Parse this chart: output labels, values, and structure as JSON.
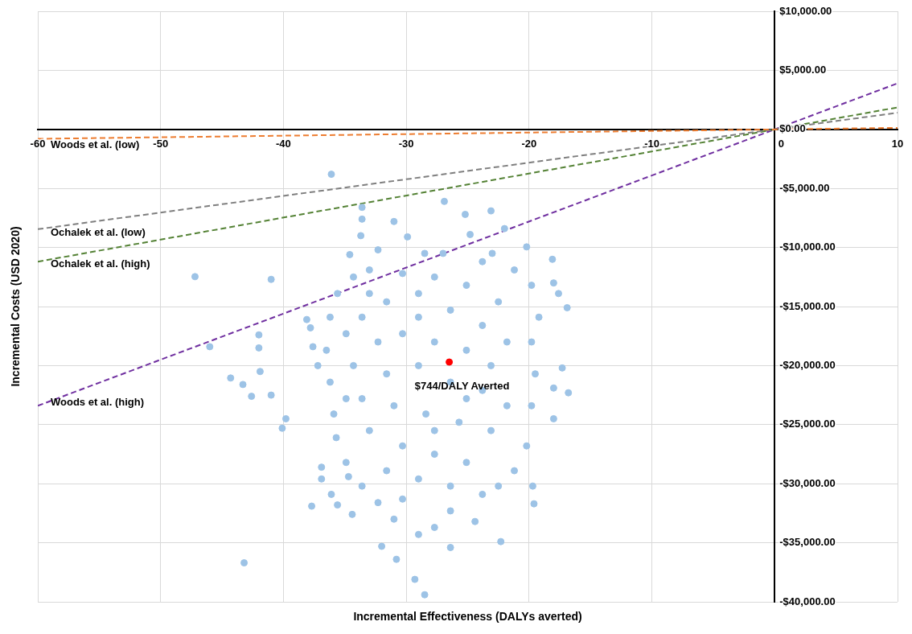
{
  "chart_data": {
    "type": "scatter",
    "xlabel": "Incremental Effectiveness (DALYs averted)",
    "ylabel": "Incremental Costs (USD 2020)",
    "xlim": [
      -60,
      10
    ],
    "xticks": [
      -60,
      -50,
      -40,
      -30,
      -20,
      -10,
      0,
      10
    ],
    "ylim": [
      -40000,
      10000
    ],
    "yticks": [
      {
        "value": 10000,
        "label": "$10,000.00"
      },
      {
        "value": 5000,
        "label": "$5,000.00"
      },
      {
        "value": 0,
        "label": "$0.00"
      },
      {
        "value": -5000,
        "label": "-$5,000.00"
      },
      {
        "value": -10000,
        "label": "-$10,000.00"
      },
      {
        "value": -15000,
        "label": "-$15,000.00"
      },
      {
        "value": -20000,
        "label": "-$20,000.00"
      },
      {
        "value": -25000,
        "label": "-$25,000.00"
      },
      {
        "value": -30000,
        "label": "-$30,000.00"
      },
      {
        "value": -35000,
        "label": "-$35,000.00"
      },
      {
        "value": -40000,
        "label": "-$40,000.00"
      }
    ],
    "grid": true,
    "legend": false,
    "marker": "circle",
    "series": [
      {
        "color": "#9dc3e6",
        "x": [
          -47.2,
          -46.0,
          -44.3,
          -43.3,
          -43.2,
          -42.6,
          -42.0,
          -42.0,
          -41.9,
          -41.0,
          -41.0,
          -40.1,
          -39.8,
          -36.1,
          -37.7,
          -35.6,
          -29.3,
          -28.5,
          -30.8,
          -32.0,
          -26.9,
          -25.2,
          -23.1,
          -22.0,
          -31.0,
          -33.6,
          -33.6,
          -20.2,
          -18.0,
          -17.6,
          -18.1,
          -16.9,
          -17.3,
          -16.8,
          -18.0,
          -18.0,
          -19.7,
          -19.6,
          -22.3,
          -24.4,
          -26.4,
          -38.1,
          -37.8,
          -37.6,
          -37.2,
          -36.9,
          -36.9,
          -35.7,
          -36.1,
          -34.4,
          -34.7,
          -34.6,
          -33.7,
          -32.3,
          -29.9,
          -28.5,
          -27.0,
          -24.8,
          -23.8,
          -23.0,
          -21.2,
          -19.8,
          -19.2,
          -19.8,
          -19.5,
          -19.8,
          -20.2,
          -21.2,
          -22.5,
          -23.8,
          -26.4,
          -27.7,
          -29.0,
          -31.0,
          -32.3,
          -33.6,
          -34.9,
          -35.9,
          -36.2,
          -36.5,
          -36.2,
          -35.6,
          -34.3,
          -33.0,
          -30.3,
          -27.7,
          -25.1,
          -22.5,
          -33.6,
          -31.6,
          -29.0,
          -26.4,
          -23.8,
          -21.8,
          -32.3,
          -30.3,
          -27.7,
          -25.1,
          -23.1,
          -34.3,
          -31.6,
          -29.0,
          -26.4,
          -23.8,
          -21.8,
          -33.6,
          -31.0,
          -28.4,
          -25.7,
          -23.1,
          -33.0,
          -30.3,
          -27.7,
          -25.1,
          -31.6,
          -29.0,
          -26.4,
          -30.3,
          -27.7,
          -25.1,
          -29.0,
          -33.0,
          -34.9,
          -34.9
        ],
        "values": [
          -12470,
          -18400,
          -21050,
          -21600,
          -36700,
          -22600,
          -17400,
          -18500,
          -20500,
          -12700,
          -22500,
          -25300,
          -24500,
          -3800,
          -31900,
          -31800,
          -38100,
          -39400,
          -36400,
          -35300,
          -6100,
          -7200,
          -6900,
          -8400,
          -7800,
          -7600,
          -6600,
          -9950,
          -13000,
          -13900,
          -11000,
          -15100,
          -20200,
          -22300,
          -21900,
          -24500,
          -30200,
          -31700,
          -34900,
          -33200,
          -35400,
          -16100,
          -16800,
          -18400,
          -20000,
          -28600,
          -29600,
          -26100,
          -30900,
          -32600,
          -29400,
          -10600,
          -9000,
          -10200,
          -9100,
          -10500,
          -10500,
          -8900,
          -11200,
          -10500,
          -11900,
          -13200,
          -15900,
          -18000,
          -20700,
          -23400,
          -26800,
          -28900,
          -30200,
          -30900,
          -32300,
          -33700,
          -34300,
          -33000,
          -31600,
          -30200,
          -28200,
          -24100,
          -21400,
          -18700,
          -15900,
          -13900,
          -12500,
          -11900,
          -12200,
          -12500,
          -13200,
          -14600,
          -15900,
          -14600,
          -15900,
          -15300,
          -16600,
          -18000,
          -18000,
          -17300,
          -18000,
          -18700,
          -20000,
          -20000,
          -20700,
          -20000,
          -21400,
          -22100,
          -23400,
          -22800,
          -23400,
          -24100,
          -24800,
          -25500,
          -25500,
          -26800,
          -27500,
          -28200,
          -28900,
          -29600,
          -30200,
          -31300,
          -25500,
          -22800,
          -13900,
          -13900,
          -17300,
          -22800
        ]
      },
      {
        "type": "line",
        "name": "Woods et al. (low)",
        "color": "#ed7d31",
        "line_style": "dashed",
        "x": [
          -60,
          10
        ],
        "values": [
          -800,
          130
        ],
        "marker": "none"
      },
      {
        "type": "line",
        "name": "Ochalek et al. (low)",
        "color": "#7f7f7f",
        "line_style": "dashed",
        "x": [
          -60,
          10
        ],
        "values": [
          -8450,
          1410
        ],
        "marker": "none"
      },
      {
        "type": "line",
        "name": "Ochalek et al. (high)",
        "color": "#548235",
        "line_style": "dashed",
        "x": [
          -60,
          10
        ],
        "values": [
          -11200,
          1860
        ],
        "marker": "none"
      },
      {
        "type": "line",
        "name": "Woods et al. (high)",
        "color": "#7030a0",
        "line_style": "dashed",
        "x": [
          -60,
          10
        ],
        "values": [
          -23400,
          3900
        ],
        "marker": "none"
      },
      {
        "type": "scatter",
        "color": "#ff0000",
        "x": [
          -26.5
        ],
        "values": [
          -19700
        ]
      }
    ],
    "annotations": [
      {
        "text": "$744/DALY Averted",
        "x": -26.5,
        "y": -19700
      }
    ]
  }
}
